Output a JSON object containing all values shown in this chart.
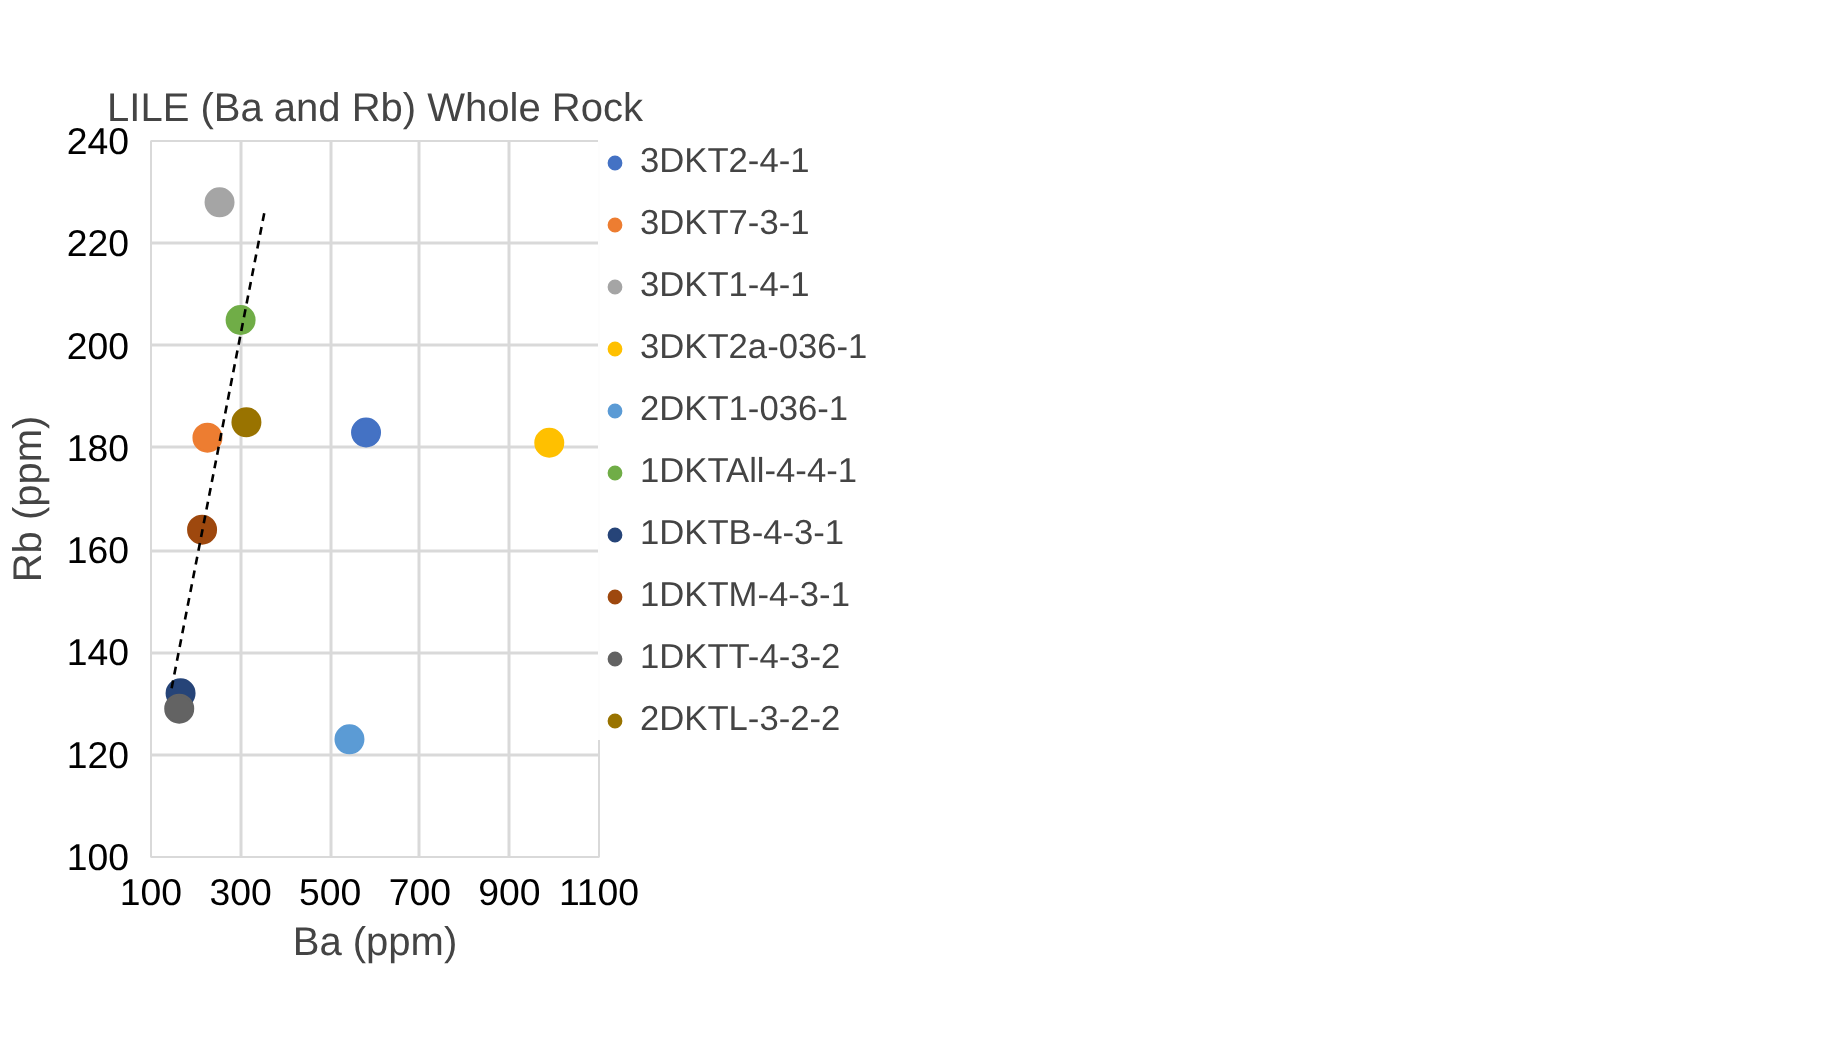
{
  "chart_data": {
    "type": "scatter",
    "title": "LILE (Ba and Rb) Whole Rock",
    "xlabel": "Ba (ppm)",
    "ylabel": "Rb (ppm)",
    "xlim": [
      100,
      1100
    ],
    "xticks": [
      100,
      300,
      500,
      700,
      900,
      1100
    ],
    "ylim": [
      100,
      240
    ],
    "yticks": [
      100,
      120,
      140,
      160,
      180,
      200,
      220,
      240
    ],
    "grid": true,
    "legend": "right",
    "marker": "circle",
    "series": [
      {
        "name": "3DKT2-4-1",
        "color": "#4472c4",
        "x": [
          580
        ],
        "values": [
          183
        ]
      },
      {
        "name": "3DKT7-3-1",
        "color": "#ed7d31",
        "x": [
          226
        ],
        "values": [
          182
        ]
      },
      {
        "name": "3DKT1-4-1",
        "color": "#a5a5a5",
        "x": [
          253
        ],
        "values": [
          228
        ]
      },
      {
        "name": "3DKT2a-036-1",
        "color": "#ffc000",
        "x": [
          989
        ],
        "values": [
          181
        ]
      },
      {
        "name": "2DKT1-036-1",
        "color": "#5b9bd5",
        "x": [
          543
        ],
        "values": [
          123
        ]
      },
      {
        "name": "1DKTAll-4-4-1",
        "color": "#70ad47",
        "x": [
          300
        ],
        "values": [
          205
        ]
      },
      {
        "name": "1DKTB-4-3-1",
        "color": "#264478",
        "x": [
          166
        ],
        "values": [
          132
        ]
      },
      {
        "name": "1DKTM-4-3-1",
        "color": "#9e480e",
        "x": [
          214
        ],
        "values": [
          164
        ]
      },
      {
        "name": "1DKTT-4-3-2",
        "color": "#636363",
        "x": [
          163
        ],
        "values": [
          129
        ]
      },
      {
        "name": "2DKTL-3-2-2",
        "color": "#997300",
        "x": [
          313
        ],
        "values": [
          185
        ]
      },
      {
        "type": "line",
        "color": "#000000",
        "x": [
          146,
          353
        ],
        "values": [
          133,
          226
        ],
        "line_style": "dashed",
        "marker": "none"
      }
    ]
  }
}
